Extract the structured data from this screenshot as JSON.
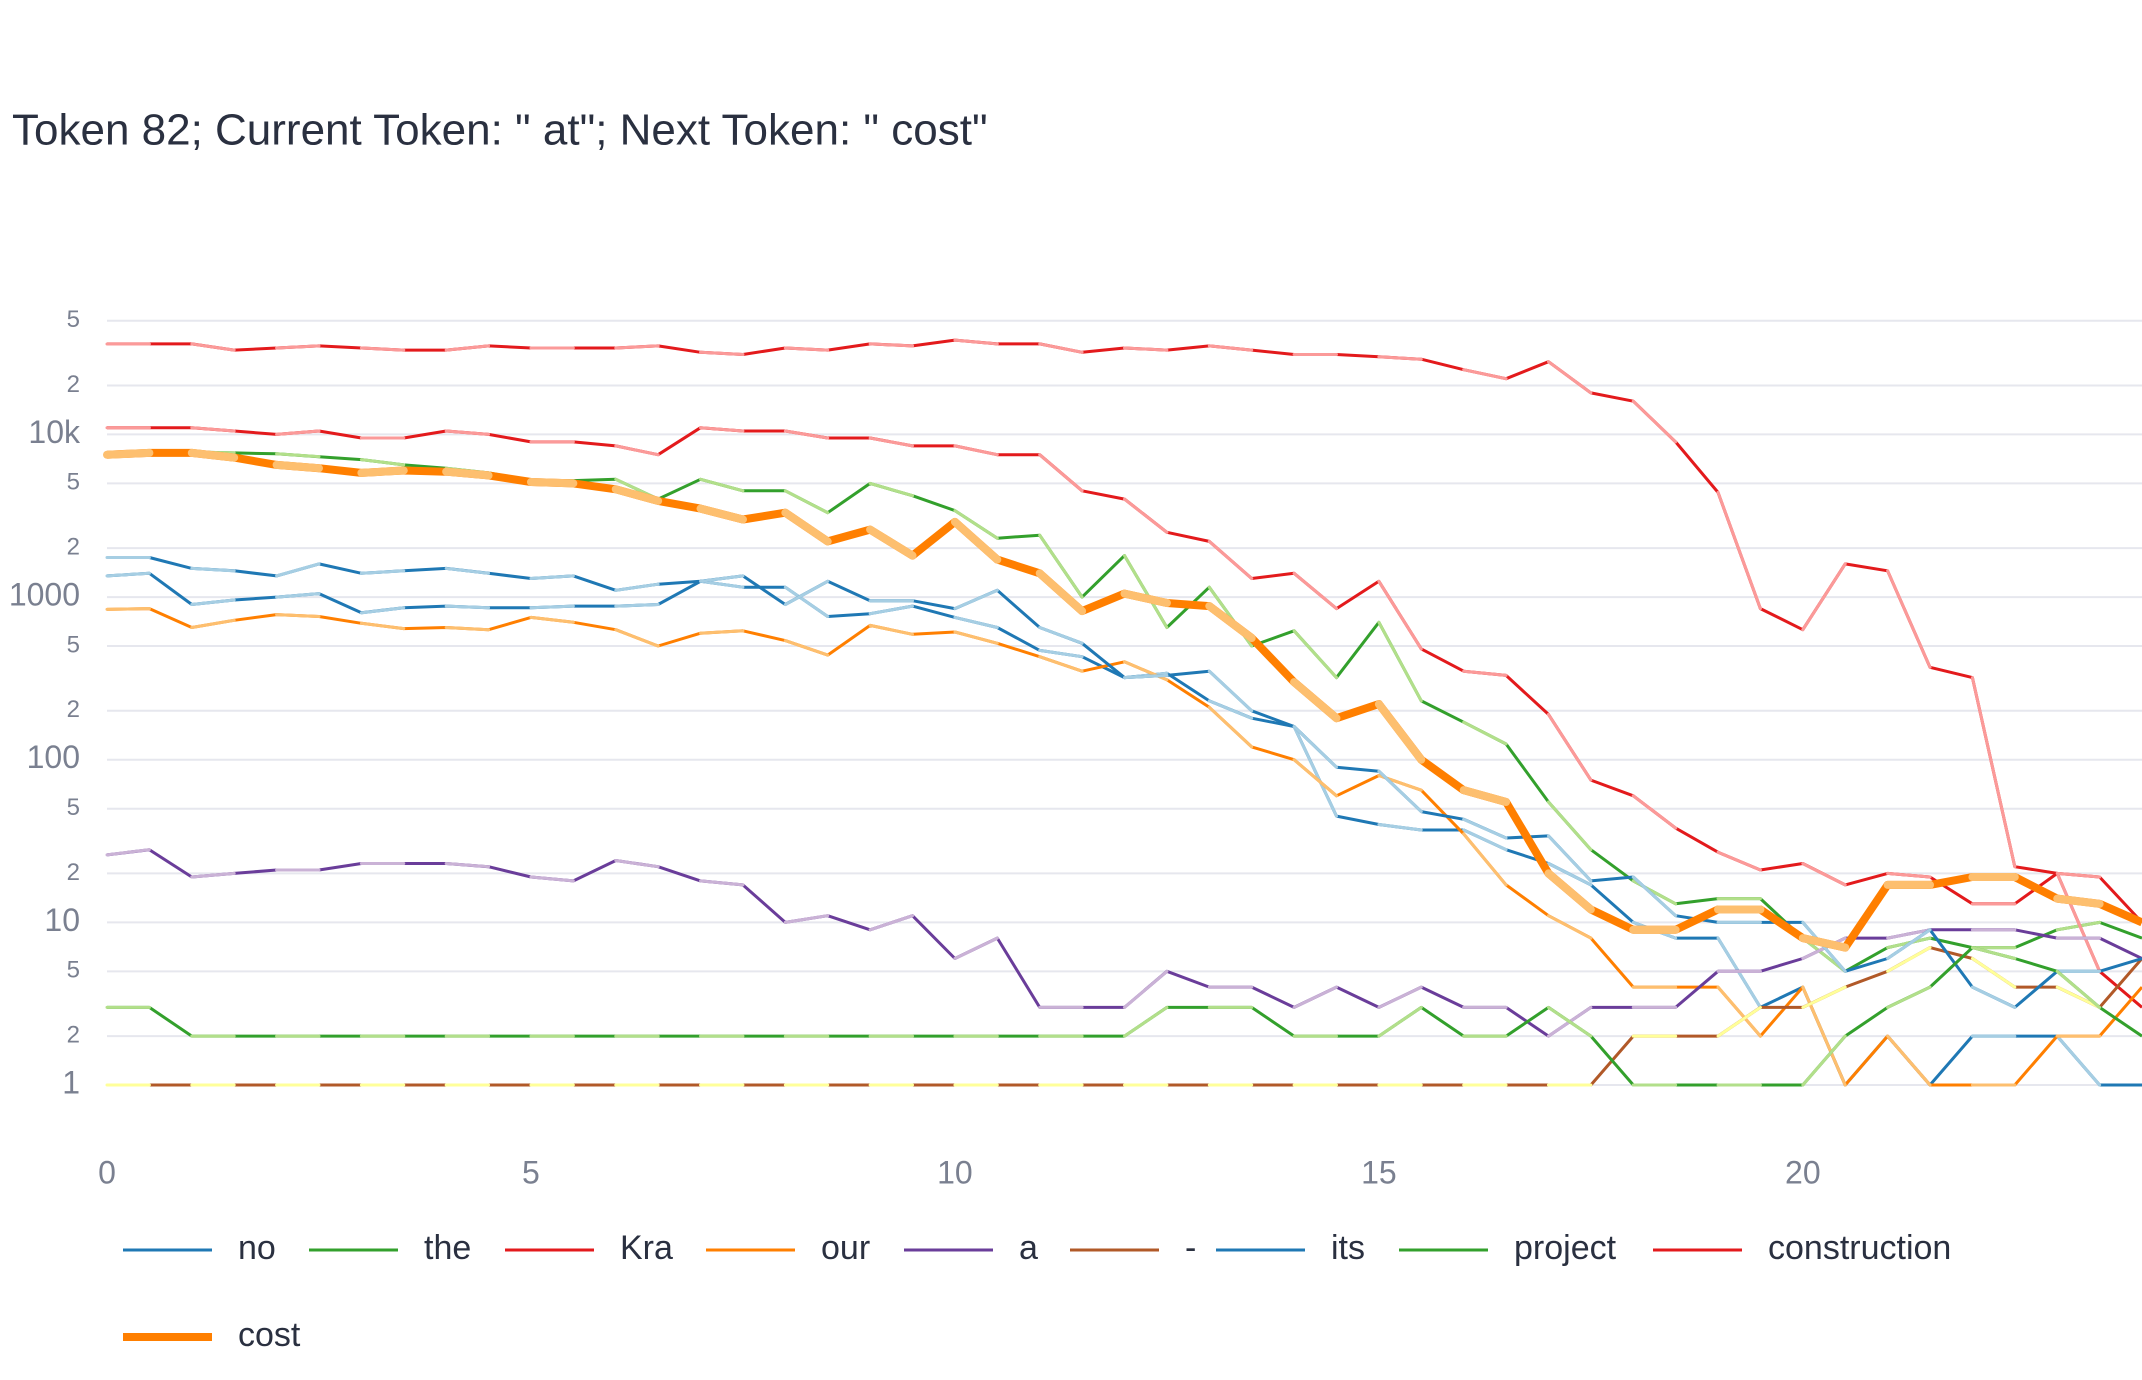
{
  "chart_data": {
    "type": "line",
    "title": "Token 82; Current Token: \" at\"; Next Token: \" cost\"",
    "x": [
      0,
      0.5,
      1,
      1.5,
      2,
      2.5,
      3,
      3.5,
      4,
      4.5,
      5,
      5.5,
      6,
      6.5,
      7,
      7.5,
      8,
      8.5,
      9,
      9.5,
      10,
      10.5,
      11,
      11.5,
      12,
      12.5,
      13,
      13.5,
      14,
      14.5,
      15,
      15.5,
      16,
      16.5,
      17,
      17.5,
      18,
      18.5,
      19,
      19.5,
      20,
      20.5,
      21,
      21.5,
      22,
      22.5,
      23,
      23.5,
      24
    ],
    "xlim": [
      0,
      24
    ],
    "xticks": [
      0,
      5,
      10,
      15,
      20
    ],
    "ylim": [
      0.5,
      73000
    ],
    "log_y": true,
    "grid": true,
    "yticks": [
      1,
      2,
      5,
      10,
      {
        "value": 20,
        "label": "2"
      },
      {
        "value": 50,
        "label": "5"
      },
      100,
      {
        "value": 200,
        "label": "2"
      },
      {
        "value": 500,
        "label": "5"
      },
      1000,
      {
        "value": 2000,
        "label": "2"
      },
      {
        "value": 5000,
        "label": "5"
      },
      {
        "value": 10000,
        "label": "10k"
      },
      {
        "value": 20000,
        "label": "2"
      },
      {
        "value": 50000,
        "label": "5"
      }
    ],
    "series": [
      {
        "name": "no",
        "color": "#1f78b4",
        "alt_color": "#a6cee3",
        "width": 3,
        "values": [
          1350,
          1400,
          900,
          960,
          1000,
          1050,
          800,
          860,
          880,
          860,
          860,
          880,
          880,
          900,
          1250,
          1150,
          1150,
          760,
          790,
          880,
          750,
          650,
          470,
          430,
          320,
          340,
          230,
          180,
          160,
          45,
          40,
          37,
          37,
          28,
          23,
          17,
          10,
          8,
          8,
          3,
          4,
          1,
          2,
          1,
          2,
          2,
          2,
          1,
          1
        ]
      },
      {
        "name": "the",
        "color": "#33a02c",
        "alt_color": "#b2df8a",
        "width": 3,
        "values": [
          7500,
          7800,
          7800,
          7700,
          7600,
          7300,
          7000,
          6500,
          6200,
          5800,
          5200,
          5200,
          5300,
          4000,
          5300,
          4500,
          4500,
          3300,
          5000,
          4200,
          3400,
          2300,
          2400,
          1000,
          1800,
          650,
          1150,
          500,
          620,
          320,
          700,
          230,
          170,
          125,
          55,
          28,
          18,
          13,
          14,
          14,
          8,
          5,
          7,
          8,
          7,
          7,
          9,
          10,
          8
        ]
      },
      {
        "name": "Kra",
        "color": "#e31a1c",
        "alt_color": "#fb9a99",
        "width": 3,
        "values": [
          11000,
          11000,
          11000,
          10500,
          10000,
          10500,
          9500,
          9500,
          10500,
          10000,
          9000,
          9000,
          8500,
          7500,
          11000,
          10500,
          10500,
          9500,
          9500,
          8500,
          8500,
          7500,
          7500,
          4500,
          4000,
          2500,
          2200,
          1300,
          1400,
          850,
          1250,
          480,
          350,
          330,
          190,
          75,
          60,
          38,
          27,
          21,
          23,
          17,
          20,
          19,
          13,
          13,
          20,
          5,
          3
        ]
      },
      {
        "name": "our",
        "color": "#ff7f00",
        "alt_color": "#fdbf6f",
        "width": 3,
        "values": [
          840,
          850,
          650,
          720,
          780,
          760,
          690,
          640,
          650,
          630,
          750,
          700,
          630,
          500,
          600,
          620,
          540,
          440,
          670,
          590,
          610,
          520,
          430,
          350,
          400,
          310,
          210,
          120,
          100,
          60,
          80,
          65,
          35,
          17,
          11,
          8,
          4,
          4,
          4,
          2,
          4,
          1,
          2,
          1,
          1,
          1,
          2,
          2,
          4
        ]
      },
      {
        "name": "a",
        "color": "#6a3d9a",
        "alt_color": "#cab2d6",
        "width": 3,
        "values": [
          26,
          28,
          19,
          20,
          21,
          21,
          23,
          23,
          23,
          22,
          19,
          18,
          24,
          22,
          18,
          17,
          10,
          11,
          9,
          11,
          6,
          8,
          3,
          3,
          3,
          5,
          4,
          4,
          3,
          4,
          3,
          4,
          3,
          3,
          2,
          3,
          3,
          3,
          5,
          5,
          6,
          8,
          8,
          9,
          9,
          9,
          8,
          8,
          6
        ]
      },
      {
        "name": "-",
        "color": "#b15928",
        "alt_color": "#ffff99",
        "width": 3,
        "values": [
          1,
          1,
          1,
          1,
          1,
          1,
          1,
          1,
          1,
          1,
          1,
          1,
          1,
          1,
          1,
          1,
          1,
          1,
          1,
          1,
          1,
          1,
          1,
          1,
          1,
          1,
          1,
          1,
          1,
          1,
          1,
          1,
          1,
          1,
          1,
          1,
          2,
          2,
          2,
          3,
          3,
          4,
          5,
          7,
          6,
          4,
          4,
          3,
          6
        ]
      },
      {
        "name": "its",
        "color": "#1f78b4",
        "alt_color": "#a6cee3",
        "width": 3,
        "values": [
          1750,
          1750,
          1500,
          1450,
          1350,
          1600,
          1400,
          1450,
          1500,
          1400,
          1300,
          1350,
          1100,
          1200,
          1250,
          1350,
          900,
          1250,
          950,
          950,
          850,
          1100,
          650,
          520,
          320,
          330,
          350,
          200,
          160,
          90,
          85,
          48,
          43,
          33,
          34,
          18,
          19,
          11,
          10,
          10,
          10,
          5,
          6,
          9,
          4,
          3,
          5,
          5,
          6
        ]
      },
      {
        "name": "project",
        "color": "#33a02c",
        "alt_color": "#b2df8a",
        "width": 3,
        "values": [
          3,
          3,
          2,
          2,
          2,
          2,
          2,
          2,
          2,
          2,
          2,
          2,
          2,
          2,
          2,
          2,
          2,
          2,
          2,
          2,
          2,
          2,
          2,
          2,
          2,
          3,
          3,
          3,
          2,
          2,
          2,
          3,
          2,
          2,
          3,
          2,
          1,
          1,
          1,
          1,
          1,
          2,
          3,
          4,
          7,
          6,
          5,
          3,
          2
        ]
      },
      {
        "name": "construction",
        "color": "#e31a1c",
        "alt_color": "#fb9a99",
        "width": 3,
        "values": [
          36000,
          36000,
          36000,
          33000,
          34000,
          35000,
          34000,
          33000,
          33000,
          35000,
          34000,
          34000,
          34000,
          35000,
          32000,
          31000,
          34000,
          33000,
          36000,
          35000,
          38000,
          36000,
          36000,
          32000,
          34000,
          33000,
          35000,
          33000,
          31000,
          31000,
          30000,
          29000,
          25000,
          22000,
          28000,
          18000,
          16000,
          9000,
          4400,
          850,
          630,
          1600,
          1450,
          370,
          320,
          22,
          20,
          19,
          10
        ]
      },
      {
        "name": "cost",
        "color": "#ff7f00",
        "alt_color": "#fdbf6f",
        "width": 8,
        "values": [
          7500,
          7700,
          7700,
          7200,
          6500,
          6200,
          5800,
          6000,
          5900,
          5600,
          5100,
          5000,
          4600,
          3900,
          3500,
          3000,
          3300,
          2200,
          2600,
          1800,
          2900,
          1700,
          1400,
          820,
          1050,
          920,
          880,
          560,
          300,
          180,
          220,
          100,
          65,
          55,
          20,
          12,
          9,
          9,
          12,
          12,
          8,
          7,
          17,
          17,
          19,
          19,
          14,
          13,
          10
        ]
      }
    ]
  }
}
